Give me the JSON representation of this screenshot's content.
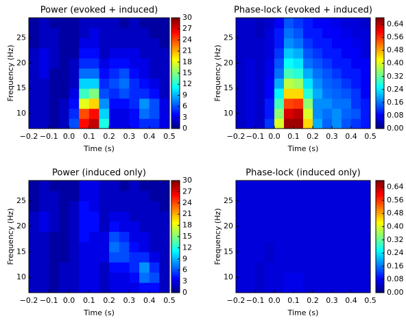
{
  "chart_data": [
    {
      "type": "heatmap",
      "title": "Power (evoked + induced)",
      "x_label": "Time (s)",
      "y_label": "Frequency (Hz)",
      "colormap": "jet",
      "x": [
        -0.175,
        -0.125,
        -0.075,
        -0.025,
        0.025,
        0.075,
        0.125,
        0.175,
        0.225,
        0.275,
        0.325,
        0.375,
        0.425,
        0.475
      ],
      "y": [
        8,
        10,
        12,
        14,
        16,
        18,
        20,
        22,
        24,
        26,
        28
      ],
      "z": [
        [
          2,
          2,
          1,
          2,
          6,
          26,
          28,
          12,
          3,
          3,
          4,
          5,
          5,
          3
        ],
        [
          2,
          2,
          1,
          2,
          5,
          24,
          26,
          10,
          3,
          3,
          4,
          7,
          6,
          3
        ],
        [
          2,
          2,
          1,
          2,
          4,
          18,
          20,
          8,
          4,
          4,
          5,
          8,
          6,
          3
        ],
        [
          2,
          2,
          1,
          1,
          3,
          13,
          15,
          6,
          5,
          6,
          5,
          5,
          4,
          2
        ],
        [
          2,
          2,
          1,
          1,
          2,
          10,
          10,
          5,
          6,
          7,
          5,
          4,
          3,
          2
        ],
        [
          2,
          3,
          1,
          1,
          2,
          7,
          7,
          4,
          5,
          6,
          4,
          3,
          2,
          2
        ],
        [
          2,
          3,
          2,
          1,
          2,
          5,
          5,
          3,
          4,
          4,
          3,
          3,
          2,
          2
        ],
        [
          2,
          3,
          2,
          1,
          1,
          4,
          4,
          2,
          3,
          3,
          3,
          2,
          2,
          2
        ],
        [
          1,
          2,
          2,
          1,
          1,
          3,
          3,
          2,
          2,
          2,
          2,
          2,
          2,
          1
        ],
        [
          1,
          2,
          2,
          1,
          1,
          2,
          3,
          2,
          2,
          2,
          2,
          2,
          1,
          1
        ],
        [
          1,
          2,
          1,
          1,
          1,
          2,
          2,
          2,
          2,
          1,
          2,
          1,
          1,
          1
        ]
      ],
      "xlim": [
        -0.2,
        0.5
      ],
      "xticks": [
        {
          "value": -0.2,
          "label": "−0.2"
        },
        {
          "value": -0.1,
          "label": "−0.1"
        },
        {
          "value": 0,
          "label": "0.0"
        },
        {
          "value": 0.1,
          "label": "0.1"
        },
        {
          "value": 0.2,
          "label": "0.2"
        },
        {
          "value": 0.3,
          "label": "0.3"
        },
        {
          "value": 0.4,
          "label": "0.4"
        },
        {
          "value": 0.5,
          "label": "0.5"
        }
      ],
      "ylim": [
        7,
        29
      ],
      "yticks": [
        10,
        15,
        20,
        25
      ],
      "zlim": [
        0,
        30
      ],
      "zticks": [
        0,
        3,
        6,
        9,
        12,
        15,
        18,
        21,
        24,
        27,
        30
      ]
    },
    {
      "type": "heatmap",
      "title": "Phase-lock (evoked + induced)",
      "x_label": "Time (s)",
      "y_label": "Frequency (Hz)",
      "colormap": "jet",
      "x": [
        -0.175,
        -0.125,
        -0.075,
        -0.025,
        0.025,
        0.075,
        0.125,
        0.175,
        0.225,
        0.275,
        0.325,
        0.375,
        0.425,
        0.475
      ],
      "y": [
        8,
        10,
        12,
        14,
        16,
        18,
        20,
        22,
        24,
        26,
        28
      ],
      "z": [
        [
          0.05,
          0.06,
          0.05,
          0.12,
          0.4,
          0.66,
          0.66,
          0.45,
          0.2,
          0.15,
          0.18,
          0.14,
          0.12,
          0.1
        ],
        [
          0.05,
          0.06,
          0.05,
          0.1,
          0.35,
          0.62,
          0.64,
          0.4,
          0.18,
          0.16,
          0.18,
          0.15,
          0.14,
          0.1
        ],
        [
          0.05,
          0.06,
          0.05,
          0.1,
          0.3,
          0.55,
          0.56,
          0.35,
          0.18,
          0.18,
          0.16,
          0.16,
          0.12,
          0.1
        ],
        [
          0.05,
          0.06,
          0.05,
          0.08,
          0.25,
          0.45,
          0.45,
          0.28,
          0.2,
          0.16,
          0.15,
          0.14,
          0.12,
          0.08
        ],
        [
          0.05,
          0.06,
          0.05,
          0.08,
          0.2,
          0.38,
          0.36,
          0.24,
          0.18,
          0.15,
          0.14,
          0.12,
          0.1,
          0.08
        ],
        [
          0.05,
          0.06,
          0.05,
          0.07,
          0.16,
          0.3,
          0.28,
          0.2,
          0.16,
          0.14,
          0.12,
          0.1,
          0.1,
          0.08
        ],
        [
          0.05,
          0.06,
          0.05,
          0.07,
          0.14,
          0.26,
          0.24,
          0.16,
          0.14,
          0.12,
          0.1,
          0.1,
          0.08,
          0.08
        ],
        [
          0.05,
          0.05,
          0.05,
          0.06,
          0.12,
          0.22,
          0.2,
          0.14,
          0.12,
          0.1,
          0.1,
          0.08,
          0.08,
          0.06
        ],
        [
          0.05,
          0.05,
          0.05,
          0.06,
          0.1,
          0.18,
          0.16,
          0.12,
          0.1,
          0.1,
          0.08,
          0.08,
          0.07,
          0.06
        ],
        [
          0.05,
          0.05,
          0.04,
          0.06,
          0.1,
          0.16,
          0.14,
          0.1,
          0.1,
          0.08,
          0.08,
          0.07,
          0.06,
          0.06
        ],
        [
          0.05,
          0.05,
          0.04,
          0.05,
          0.08,
          0.14,
          0.12,
          0.1,
          0.08,
          0.08,
          0.07,
          0.06,
          0.06,
          0.05
        ]
      ],
      "xlim": [
        -0.2,
        0.5
      ],
      "xticks": [
        {
          "value": -0.2,
          "label": "−0.2"
        },
        {
          "value": -0.1,
          "label": "−0.1"
        },
        {
          "value": 0,
          "label": "0.0"
        },
        {
          "value": 0.1,
          "label": "0.1"
        },
        {
          "value": 0.2,
          "label": "0.2"
        },
        {
          "value": 0.3,
          "label": "0.3"
        },
        {
          "value": 0.4,
          "label": "0.4"
        },
        {
          "value": 0.5,
          "label": "0.5"
        }
      ],
      "ylim": [
        7,
        29
      ],
      "yticks": [
        10,
        15,
        20,
        25
      ],
      "zlim": [
        0,
        0.68
      ],
      "zticks": [
        {
          "value": 0,
          "label": "0.00"
        },
        {
          "value": 0.08,
          "label": "0.08"
        },
        {
          "value": 0.16,
          "label": "0.16"
        },
        {
          "value": 0.24,
          "label": "0.24"
        },
        {
          "value": 0.32,
          "label": "0.32"
        },
        {
          "value": 0.4,
          "label": "0.40"
        },
        {
          "value": 0.48,
          "label": "0.48"
        },
        {
          "value": 0.56,
          "label": "0.56"
        },
        {
          "value": 0.64,
          "label": "0.64"
        }
      ]
    },
    {
      "type": "heatmap",
      "title": "Power (induced only)",
      "x_label": "Time (s)",
      "y_label": "Frequency (Hz)",
      "colormap": "jet",
      "x": [
        -0.175,
        -0.125,
        -0.075,
        -0.025,
        0.025,
        0.075,
        0.125,
        0.175,
        0.225,
        0.275,
        0.325,
        0.375,
        0.425,
        0.475
      ],
      "y": [
        8,
        10,
        12,
        14,
        16,
        18,
        20,
        22,
        24,
        26,
        28
      ],
      "z": [
        [
          2,
          2,
          1,
          2,
          2,
          3,
          3,
          2,
          3,
          3,
          3,
          4,
          4,
          2
        ],
        [
          2,
          2,
          1,
          2,
          2,
          3,
          3,
          2,
          3,
          3,
          4,
          7,
          6,
          2
        ],
        [
          2,
          2,
          1,
          2,
          2,
          3,
          3,
          2,
          4,
          4,
          5,
          8,
          5,
          2
        ],
        [
          2,
          2,
          1,
          1,
          2,
          3,
          3,
          3,
          6,
          6,
          5,
          5,
          3,
          2
        ],
        [
          2,
          2,
          1,
          1,
          2,
          3,
          3,
          3,
          7,
          6,
          4,
          3,
          2,
          2
        ],
        [
          2,
          2,
          1,
          1,
          2,
          4,
          3,
          3,
          6,
          5,
          3,
          3,
          2,
          2
        ],
        [
          2,
          3,
          2,
          1,
          2,
          4,
          4,
          2,
          4,
          3,
          3,
          2,
          2,
          2
        ],
        [
          2,
          3,
          2,
          1,
          2,
          4,
          4,
          2,
          3,
          3,
          2,
          2,
          2,
          2
        ],
        [
          1,
          2,
          2,
          1,
          2,
          4,
          3,
          2,
          2,
          2,
          2,
          2,
          2,
          1
        ],
        [
          1,
          2,
          2,
          1,
          1,
          3,
          3,
          2,
          2,
          2,
          2,
          2,
          1,
          1
        ],
        [
          1,
          2,
          1,
          1,
          1,
          3,
          3,
          2,
          2,
          1,
          2,
          1,
          1,
          1
        ]
      ],
      "xlim": [
        -0.2,
        0.5
      ],
      "xticks": [
        {
          "value": -0.2,
          "label": "−0.2"
        },
        {
          "value": -0.1,
          "label": "−0.1"
        },
        {
          "value": 0,
          "label": "0.0"
        },
        {
          "value": 0.1,
          "label": "0.1"
        },
        {
          "value": 0.2,
          "label": "0.2"
        },
        {
          "value": 0.3,
          "label": "0.3"
        },
        {
          "value": 0.4,
          "label": "0.4"
        },
        {
          "value": 0.5,
          "label": "0.5"
        }
      ],
      "ylim": [
        7,
        29
      ],
      "yticks": [
        10,
        15,
        20,
        25
      ],
      "zlim": [
        0,
        30
      ],
      "zticks": [
        0,
        3,
        6,
        9,
        12,
        15,
        18,
        21,
        24,
        27,
        30
      ]
    },
    {
      "type": "heatmap",
      "title": "Phase-lock (induced only)",
      "x_label": "Time (s)",
      "y_label": "Frequency (Hz)",
      "colormap": "jet",
      "x": [
        -0.175,
        -0.125,
        -0.075,
        -0.025,
        0.025,
        0.075,
        0.125,
        0.175,
        0.225,
        0.275,
        0.325,
        0.375,
        0.425,
        0.475
      ],
      "y": [
        8,
        10,
        12,
        14,
        16,
        18,
        20,
        22,
        24,
        26,
        28
      ],
      "z": [
        [
          0.06,
          0.06,
          0.05,
          0.06,
          0.06,
          0.07,
          0.07,
          0.06,
          0.06,
          0.06,
          0.06,
          0.06,
          0.06,
          0.06
        ],
        [
          0.06,
          0.06,
          0.05,
          0.06,
          0.06,
          0.07,
          0.07,
          0.06,
          0.06,
          0.06,
          0.06,
          0.06,
          0.06,
          0.06
        ],
        [
          0.06,
          0.06,
          0.05,
          0.06,
          0.06,
          0.06,
          0.06,
          0.06,
          0.06,
          0.06,
          0.06,
          0.06,
          0.06,
          0.06
        ],
        [
          0.06,
          0.06,
          0.06,
          0.05,
          0.06,
          0.06,
          0.06,
          0.06,
          0.06,
          0.06,
          0.06,
          0.06,
          0.06,
          0.06
        ],
        [
          0.06,
          0.06,
          0.06,
          0.05,
          0.06,
          0.06,
          0.06,
          0.06,
          0.06,
          0.06,
          0.06,
          0.06,
          0.06,
          0.06
        ],
        [
          0.06,
          0.06,
          0.06,
          0.06,
          0.06,
          0.06,
          0.06,
          0.06,
          0.06,
          0.06,
          0.06,
          0.06,
          0.06,
          0.06
        ],
        [
          0.06,
          0.06,
          0.06,
          0.06,
          0.06,
          0.06,
          0.06,
          0.06,
          0.06,
          0.06,
          0.06,
          0.06,
          0.06,
          0.06
        ],
        [
          0.06,
          0.06,
          0.06,
          0.06,
          0.06,
          0.06,
          0.06,
          0.06,
          0.06,
          0.06,
          0.06,
          0.06,
          0.06,
          0.06
        ],
        [
          0.06,
          0.06,
          0.06,
          0.06,
          0.06,
          0.06,
          0.06,
          0.06,
          0.06,
          0.06,
          0.06,
          0.06,
          0.06,
          0.06
        ],
        [
          0.06,
          0.06,
          0.06,
          0.06,
          0.06,
          0.06,
          0.06,
          0.06,
          0.06,
          0.06,
          0.06,
          0.06,
          0.06,
          0.06
        ],
        [
          0.06,
          0.06,
          0.06,
          0.06,
          0.06,
          0.06,
          0.06,
          0.06,
          0.06,
          0.06,
          0.06,
          0.06,
          0.06,
          0.06
        ]
      ],
      "xlim": [
        -0.2,
        0.5
      ],
      "xticks": [
        {
          "value": -0.2,
          "label": "−0.2"
        },
        {
          "value": -0.1,
          "label": "−0.1"
        },
        {
          "value": 0,
          "label": "0.0"
        },
        {
          "value": 0.1,
          "label": "0.1"
        },
        {
          "value": 0.2,
          "label": "0.2"
        },
        {
          "value": 0.3,
          "label": "0.3"
        },
        {
          "value": 0.4,
          "label": "0.4"
        },
        {
          "value": 0.5,
          "label": "0.5"
        }
      ],
      "ylim": [
        7,
        29
      ],
      "yticks": [
        10,
        15,
        20,
        25
      ],
      "zlim": [
        0,
        0.68
      ],
      "zticks": [
        {
          "value": 0,
          "label": "0.00"
        },
        {
          "value": 0.08,
          "label": "0.08"
        },
        {
          "value": 0.16,
          "label": "0.16"
        },
        {
          "value": 0.24,
          "label": "0.24"
        },
        {
          "value": 0.32,
          "label": "0.32"
        },
        {
          "value": 0.4,
          "label": "0.40"
        },
        {
          "value": 0.48,
          "label": "0.48"
        },
        {
          "value": 0.56,
          "label": "0.56"
        },
        {
          "value": 0.64,
          "label": "0.64"
        }
      ]
    }
  ]
}
